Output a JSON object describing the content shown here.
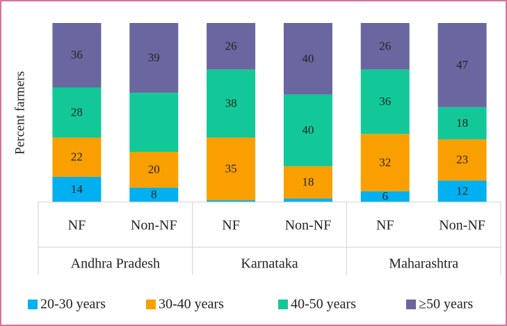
{
  "chart_data": {
    "type": "stacked_bar",
    "y_label": "Percent farmers",
    "categories": [
      "NF",
      "Non-NF",
      "NF",
      "Non-NF",
      "NF",
      "Non-NF"
    ],
    "category_groups": [
      "Andhra Pradesh",
      "Karnataka",
      "Maharashtra"
    ],
    "ylim": [
      0,
      100
    ],
    "series": [
      {
        "name": "20-30 years",
        "color": "#00b0f0",
        "values": [
          14,
          8,
          1,
          2,
          6,
          12
        ],
        "value_labels": [
          "14",
          "8",
          null,
          null,
          "6",
          "12"
        ]
      },
      {
        "name": "30-40 years",
        "color": "#f9a000",
        "values": [
          22,
          20,
          35,
          18,
          32,
          23
        ],
        "value_labels": [
          "22",
          "20",
          "35",
          "18",
          "32",
          "23"
        ]
      },
      {
        "name": "40-50 years",
        "color": "#12c898",
        "values": [
          28,
          33,
          38,
          40,
          36,
          18
        ],
        "value_labels": [
          "28",
          null,
          "38",
          "40",
          "36",
          "18"
        ]
      },
      {
        "name": "≥50 years",
        "color": "#6a669f",
        "values": [
          36,
          39,
          26,
          40,
          26,
          47
        ],
        "value_labels": [
          "36",
          "39",
          "26",
          "40",
          "26",
          "47"
        ]
      }
    ]
  }
}
